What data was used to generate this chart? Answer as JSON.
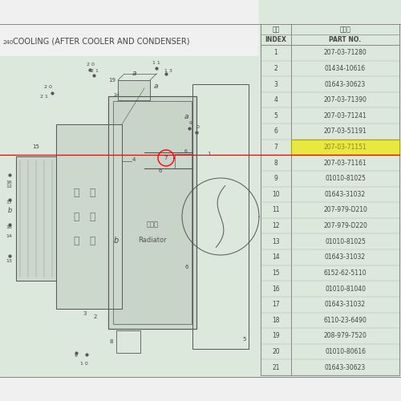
{
  "bg_color": "#dce8dc",
  "white_bg": "#f0f0f0",
  "top_white": "#f0f0f0",
  "title_prefix": "240",
  "title": "COOLING (AFTER COOLER AND CONDENSER)",
  "table_header_index_cn": "序号",
  "table_header_part_cn": "件　号",
  "table_header_index": "INDEX",
  "table_header_part": "PART NO.",
  "highlighted_row": 7,
  "highlighted_bg": "#e8e840",
  "highlighted_text_color": "#888820",
  "red_line_row": 7,
  "parts": [
    {
      "index": 1,
      "part": "207-03-71280"
    },
    {
      "index": 2,
      "part": "01434-10616"
    },
    {
      "index": 3,
      "part": "01643-30623"
    },
    {
      "index": 4,
      "part": "207-03-71390"
    },
    {
      "index": 5,
      "part": "207-03-71241"
    },
    {
      "index": 6,
      "part": "207-03-51191"
    },
    {
      "index": 7,
      "part": "207-03-71151"
    },
    {
      "index": 8,
      "part": "207-03-71161"
    },
    {
      "index": 9,
      "part": "01010-81025"
    },
    {
      "index": 10,
      "part": "01643-31032"
    },
    {
      "index": 11,
      "part": "207-979-D210"
    },
    {
      "index": 12,
      "part": "207-979-D220"
    },
    {
      "index": 13,
      "part": "01010-81025"
    },
    {
      "index": 14,
      "part": "01643-31032"
    },
    {
      "index": 15,
      "part": "6152-62-5110"
    },
    {
      "index": 16,
      "part": "01010-81040"
    },
    {
      "index": 17,
      "part": "01643-31032"
    },
    {
      "index": 18,
      "part": "6110-23-6490"
    },
    {
      "index": 19,
      "part": "208-979-7520"
    },
    {
      "index": 20,
      "part": "01010-80616"
    },
    {
      "index": 21,
      "part": "01643-30623"
    }
  ],
  "line_color": "#555555",
  "label_color": "#444444",
  "radiator_label_cn": "散热器",
  "radiator_label_en": "Radiator"
}
